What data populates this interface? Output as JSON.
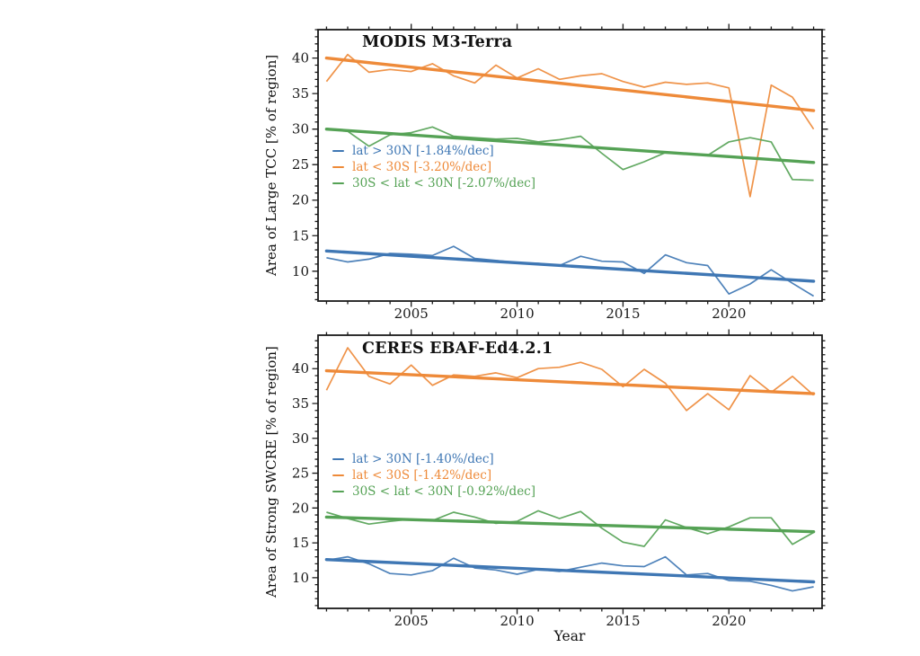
{
  "figure": {
    "xlabel": "Year"
  },
  "chart_data": [
    {
      "type": "line",
      "title": "MODIS M3-Terra",
      "ylabel": "Area of Large TCC [% of region]",
      "xlabel": "",
      "legend_position": "center-left-inside",
      "grid": false,
      "xlim": [
        2000.6,
        2024.4
      ],
      "ylim": [
        5.8,
        44.0
      ],
      "xticks": [
        2005,
        2010,
        2015,
        2020
      ],
      "yticks": [
        10,
        15,
        20,
        25,
        30,
        35,
        40
      ],
      "x": [
        2001,
        2002,
        2003,
        2004,
        2005,
        2006,
        2007,
        2008,
        2009,
        2010,
        2011,
        2012,
        2013,
        2014,
        2015,
        2016,
        2017,
        2018,
        2019,
        2020,
        2021,
        2022,
        2023,
        2024
      ],
      "series": [
        {
          "name": "lat > 30N",
          "legend": "lat > 30N [-1.84%/dec]",
          "trend_per_decade": "-1.84%/dec",
          "color": "#3f77b4",
          "values": [
            11.9,
            11.3,
            11.7,
            12.5,
            12.4,
            12.2,
            13.5,
            11.8,
            11.5,
            11.2,
            11.1,
            10.8,
            12.1,
            11.4,
            11.3,
            9.7,
            12.3,
            11.2,
            10.8,
            6.8,
            8.2,
            10.2,
            8.3,
            6.5
          ],
          "trend": [
            12.85,
            8.6
          ]
        },
        {
          "name": "lat < 30S",
          "legend": "lat < 30S [-3.20%/dec]",
          "trend_per_decade": "-3.20%/dec",
          "color": "#ee8a39",
          "values": [
            36.7,
            40.5,
            38.0,
            38.4,
            38.1,
            39.2,
            37.5,
            36.5,
            39.0,
            37.2,
            38.5,
            37.0,
            37.5,
            37.8,
            36.7,
            35.9,
            36.6,
            36.3,
            36.5,
            35.8,
            20.5,
            36.2,
            34.5,
            30.0
          ],
          "trend": [
            40.0,
            32.6
          ]
        },
        {
          "name": "30S < lat < 30N",
          "legend": "30S < lat < 30N [-2.07%/dec]",
          "trend_per_decade": "-2.07%/dec",
          "color": "#55a255",
          "values": [
            30.1,
            29.7,
            27.6,
            29.2,
            29.5,
            30.3,
            29.0,
            28.8,
            28.6,
            28.7,
            28.2,
            28.5,
            29.0,
            26.6,
            24.3,
            25.4,
            26.7,
            26.5,
            26.3,
            28.2,
            28.8,
            28.2,
            22.9,
            22.8
          ],
          "trend": [
            30.0,
            25.3
          ]
        }
      ]
    },
    {
      "type": "line",
      "title": "CERES EBAF-Ed4.2.1",
      "ylabel": "Area of Strong SWCRE [% of region]",
      "xlabel": "Year",
      "legend_position": "center-left-inside",
      "grid": false,
      "xlim": [
        2000.6,
        2024.4
      ],
      "ylim": [
        5.6,
        44.8
      ],
      "xticks": [
        2005,
        2010,
        2015,
        2020
      ],
      "yticks": [
        10,
        15,
        20,
        25,
        30,
        35,
        40
      ],
      "x": [
        2001,
        2002,
        2003,
        2004,
        2005,
        2006,
        2007,
        2008,
        2009,
        2010,
        2011,
        2012,
        2013,
        2014,
        2015,
        2016,
        2017,
        2018,
        2019,
        2020,
        2021,
        2022,
        2023,
        2024
      ],
      "series": [
        {
          "name": "lat > 30N",
          "legend": "lat > 30N [-1.40%/dec]",
          "trend_per_decade": "-1.40%/dec",
          "color": "#3f77b4",
          "values": [
            12.5,
            13.0,
            12.0,
            10.6,
            10.4,
            11.0,
            12.8,
            11.4,
            11.1,
            10.5,
            11.2,
            10.9,
            11.5,
            12.1,
            11.7,
            11.6,
            13.0,
            10.4,
            10.6,
            9.6,
            9.5,
            8.9,
            8.1,
            8.7
          ],
          "trend": [
            12.6,
            9.4
          ]
        },
        {
          "name": "lat < 30S",
          "legend": "lat < 30S [-1.42%/dec]",
          "trend_per_decade": "-1.42%/dec",
          "color": "#ee8a39",
          "values": [
            36.9,
            43.0,
            38.9,
            37.8,
            40.5,
            37.6,
            39.1,
            38.9,
            39.4,
            38.7,
            40.0,
            40.2,
            40.9,
            39.9,
            37.4,
            39.9,
            37.9,
            34.0,
            36.4,
            34.1,
            39.0,
            36.6,
            38.9,
            36.2
          ],
          "trend": [
            39.7,
            36.4
          ]
        },
        {
          "name": "30S < lat < 30N",
          "legend": "30S < lat < 30N [-0.92%/dec]",
          "trend_per_decade": "-0.92%/dec",
          "color": "#55a255",
          "values": [
            19.4,
            18.5,
            17.7,
            18.1,
            18.4,
            18.2,
            19.4,
            18.7,
            17.8,
            18.1,
            19.6,
            18.5,
            19.5,
            17.1,
            15.1,
            14.5,
            18.3,
            17.2,
            16.3,
            17.3,
            18.6,
            18.6,
            14.8,
            16.5
          ],
          "trend": [
            18.7,
            16.6
          ]
        }
      ]
    }
  ]
}
